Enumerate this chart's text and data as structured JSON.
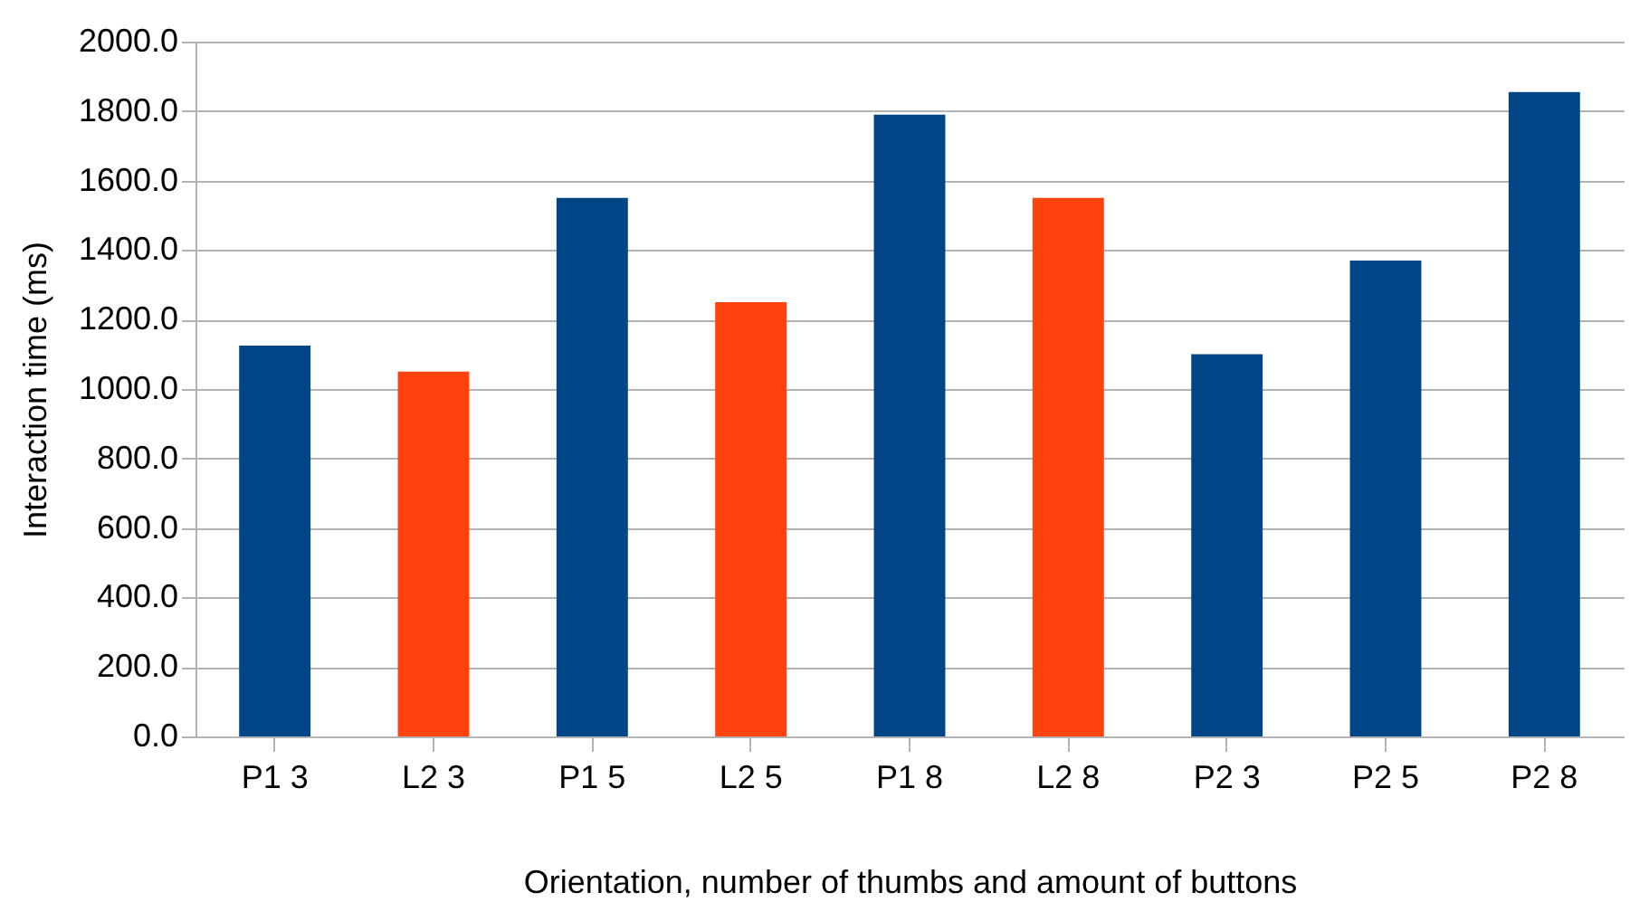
{
  "chart_data": {
    "type": "bar",
    "xlabel": "Orientation, number of thumbs and amount of buttons",
    "ylabel": "Interaction time (ms)",
    "categories": [
      "P1 3",
      "L2 3",
      "P1 5",
      "L2 5",
      "P1 8",
      "L2 8",
      "P2 3",
      "P2 5",
      "P2 8"
    ],
    "values": [
      1125,
      1050,
      1550,
      1250,
      1790,
      1550,
      1100,
      1370,
      1855
    ],
    "colors": [
      "#004586",
      "#ff420e",
      "#004586",
      "#ff420e",
      "#004586",
      "#ff420e",
      "#004586",
      "#004586",
      "#004586"
    ],
    "ylim": [
      0,
      2000
    ],
    "yticks": [
      {
        "value": 0,
        "label": "0.0"
      },
      {
        "value": 200,
        "label": "200.0"
      },
      {
        "value": 400,
        "label": "400.0"
      },
      {
        "value": 600,
        "label": "600.0"
      },
      {
        "value": 800,
        "label": "800.0"
      },
      {
        "value": 1000,
        "label": "1000.0"
      },
      {
        "value": 1200,
        "label": "1200.0"
      },
      {
        "value": 1400,
        "label": "1400.0"
      },
      {
        "value": 1600,
        "label": "1600.0"
      },
      {
        "value": 1800,
        "label": "1800.0"
      },
      {
        "value": 2000,
        "label": "2000.0"
      }
    ],
    "grid": "y",
    "legend": false
  }
}
